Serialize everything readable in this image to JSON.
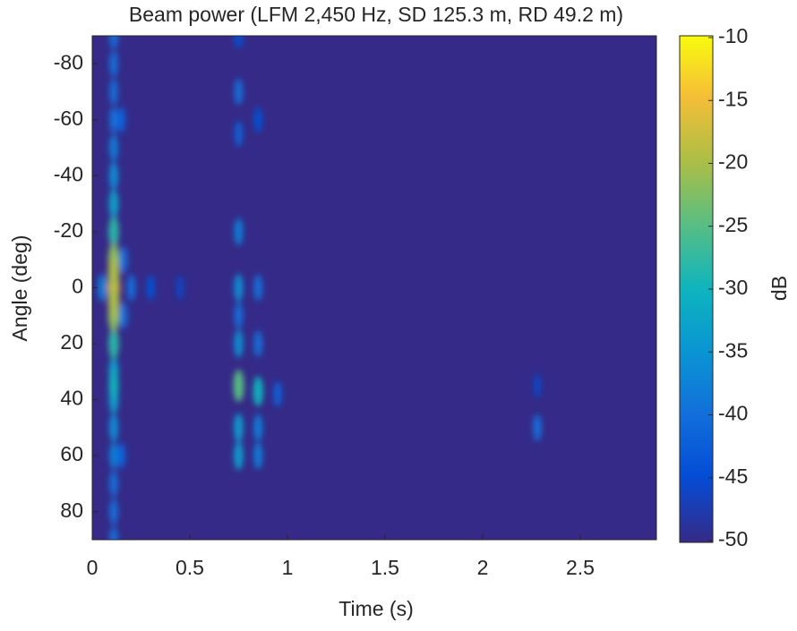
{
  "chart_data": {
    "type": "heatmap",
    "title": "Beam power (LFM 2,450 Hz, SD 125.3 m, RD 49.2 m)",
    "xlabel": "Time (s)",
    "ylabel": "Angle (deg)",
    "colorbar_label": "dB",
    "xlim": [
      0,
      2.89
    ],
    "xticks": [
      0,
      0.5,
      1,
      1.5,
      2,
      2.5
    ],
    "ylim": [
      -90,
      90
    ],
    "yticks": [
      -80,
      -60,
      -40,
      -20,
      0,
      20,
      40,
      60,
      80
    ],
    "clim": [
      -50,
      -10
    ],
    "cticks": [
      -10,
      -15,
      -20,
      -25,
      -30,
      -35,
      -40,
      -45,
      -50
    ],
    "x": [
      0.45,
      0.3,
      0.2,
      0.05,
      0.16,
      0.16,
      0.15,
      0.15,
      0.11,
      0.11,
      0.11,
      0.11,
      0.11,
      0.11,
      0.11,
      0.11,
      0.11,
      0.11,
      0.11,
      0.11,
      0.11,
      0.11,
      0.11,
      0.11,
      0.11,
      0.11,
      0.11,
      0.11,
      0.11,
      0.11,
      0.11,
      0.75,
      0.75,
      0.85,
      0.75,
      0.95,
      0.85,
      0.85,
      0.75,
      0.85,
      0.75,
      0.85,
      0.75,
      0.75,
      0.75,
      0.75,
      0.85,
      0.75,
      2.28,
      2.28
    ],
    "y": [
      0,
      0,
      0,
      0,
      -10,
      10,
      -60,
      60,
      -90,
      -80,
      -70,
      -60,
      90,
      80,
      70,
      60,
      50,
      -50,
      -40,
      40,
      -30,
      30,
      -20,
      20,
      -10,
      10,
      0,
      0,
      35,
      -5,
      5,
      -90,
      -55,
      -60,
      10,
      38,
      0,
      20,
      -70,
      50,
      50,
      60,
      60,
      -20,
      0,
      20,
      37,
      35,
      35,
      50
    ],
    "values": [
      -46,
      -44,
      -40,
      -38,
      -40,
      -40,
      -42,
      -42,
      -40,
      -40,
      -40,
      -40,
      -40,
      -40,
      -40,
      -38,
      -36,
      -38,
      -36,
      -34,
      -33,
      -33,
      -28,
      -28,
      -22,
      -22,
      -18,
      -15,
      -30,
      -20,
      -20,
      -44,
      -42,
      -44,
      -40,
      -42,
      -40,
      -40,
      -40,
      -38,
      -34,
      -38,
      -34,
      -38,
      -36,
      -36,
      -30,
      -25,
      -46,
      -40
    ]
  }
}
